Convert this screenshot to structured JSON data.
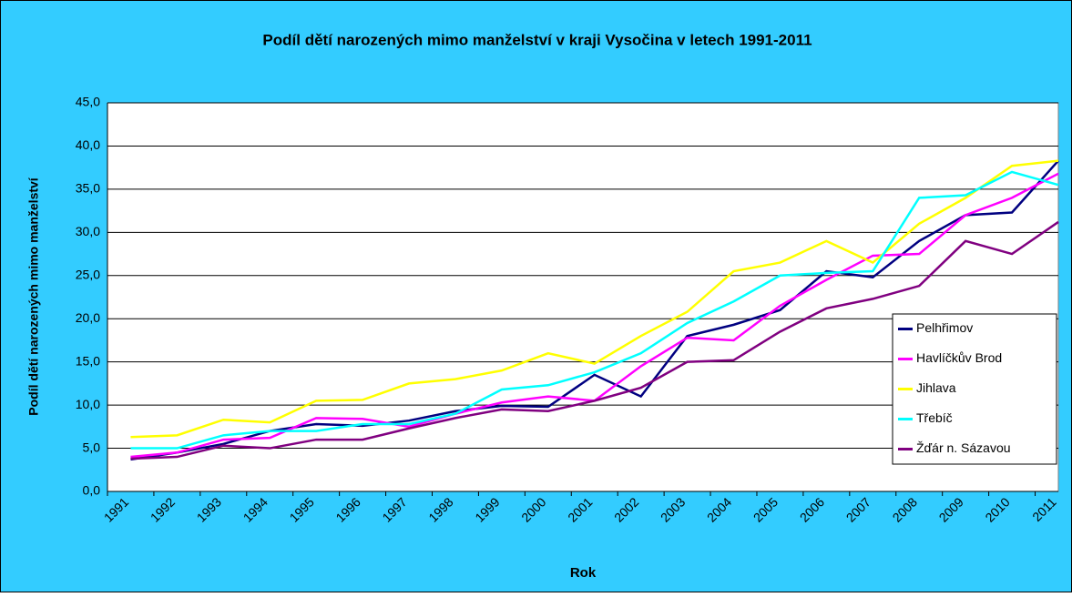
{
  "chart_data": {
    "type": "line",
    "title": "Podíl dětí narozených mimo manželství v kraji Vysočina v letech 1991-2011",
    "x_label": "Rok",
    "y_label": "Podíl dětí narozených mimo manželství",
    "categories": [
      "1991",
      "1992",
      "1993",
      "1994",
      "1995",
      "1996",
      "1997",
      "1998",
      "1999",
      "2000",
      "2001",
      "2002",
      "2003",
      "2004",
      "2005",
      "2006",
      "2007",
      "2008",
      "2009",
      "2010",
      "2011"
    ],
    "series": [
      {
        "name": "Pelhřimov",
        "color": "#000080",
        "values": [
          3.7,
          4.5,
          5.5,
          7.0,
          7.8,
          7.6,
          8.2,
          9.3,
          9.9,
          9.8,
          13.5,
          11.0,
          18.0,
          19.3,
          21.0,
          25.5,
          24.8,
          29.0,
          32.0,
          32.3,
          38.3
        ]
      },
      {
        "name": "Havlíčkův Brod",
        "color": "#ff00ff",
        "values": [
          4.0,
          4.5,
          6.0,
          6.2,
          8.5,
          8.4,
          7.5,
          9.0,
          10.3,
          11.0,
          10.5,
          14.5,
          17.8,
          17.5,
          21.5,
          24.5,
          27.3,
          27.5,
          32.0,
          34.0,
          36.8
        ]
      },
      {
        "name": "Jihlava",
        "color": "#ffff00",
        "values": [
          6.3,
          6.5,
          8.3,
          8.0,
          10.5,
          10.6,
          12.5,
          13.0,
          14.0,
          16.0,
          14.8,
          18.0,
          20.8,
          25.5,
          26.5,
          29.0,
          26.5,
          31.0,
          34.0,
          37.7,
          38.3
        ]
      },
      {
        "name": "Třebíč",
        "color": "#00ffff",
        "values": [
          5.0,
          5.0,
          6.5,
          7.0,
          7.0,
          7.8,
          7.8,
          9.0,
          11.8,
          12.3,
          13.8,
          16.0,
          19.5,
          22.0,
          25.0,
          25.3,
          25.5,
          34.0,
          34.3,
          37.0,
          35.5
        ]
      },
      {
        "name": "Žďár n. Sázavou",
        "color": "#800080",
        "values": [
          3.8,
          4.0,
          5.3,
          5.0,
          6.0,
          6.0,
          7.3,
          8.5,
          9.5,
          9.3,
          10.5,
          12.0,
          15.0,
          15.2,
          18.5,
          21.2,
          22.3,
          23.8,
          29.0,
          27.5,
          31.2
        ]
      }
    ],
    "ylim": [
      0,
      45
    ],
    "yticks": [
      {
        "value": 0,
        "label": "0,0"
      },
      {
        "value": 5,
        "label": "5,0"
      },
      {
        "value": 10,
        "label": "10,0"
      },
      {
        "value": 15,
        "label": "15,0"
      },
      {
        "value": 20,
        "label": "20,0"
      },
      {
        "value": 25,
        "label": "25,0"
      },
      {
        "value": 30,
        "label": "30,0"
      },
      {
        "value": 35,
        "label": "35,0"
      },
      {
        "value": 40,
        "label": "40,0"
      },
      {
        "value": 45,
        "label": "45,0"
      }
    ],
    "grid": true,
    "legend": "right"
  }
}
